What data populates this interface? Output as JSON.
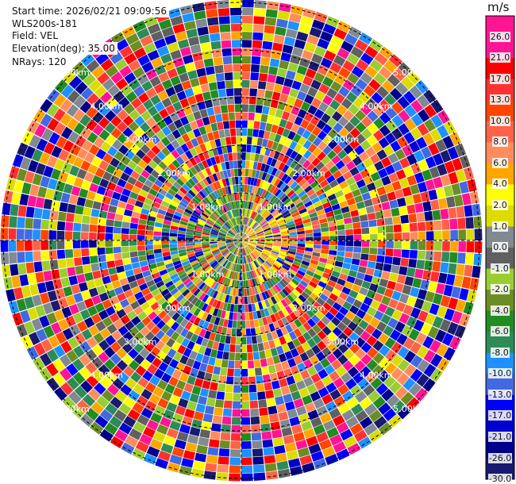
{
  "info": {
    "start_time": "Start time: 2026/02/21 09:09:56",
    "instrument": "WLS200s-181",
    "field": "Field: VEL",
    "elevation": "Elevation(deg): 35.00",
    "nrays": "NRays: 120"
  },
  "colorbar": {
    "unit": "m/s",
    "ticks": [
      "26.0",
      "21.0",
      "17.0",
      "13.0",
      "10.0",
      "8.0",
      "6.0",
      "4.0",
      "2.0",
      "1.0",
      "0.0",
      "-1.0",
      "-2.0",
      "-4.0",
      "-6.0",
      "-8.0",
      "-10.0",
      "-13.0",
      "-17.0",
      "-21.0",
      "-26.0",
      "-30.0"
    ],
    "colors": [
      "#ff1493",
      "#ff1493",
      "#ff0000",
      "#ff3030",
      "#ff4500",
      "#ff6347",
      "#ff8c5a",
      "#ffa500",
      "#ffff00",
      "#dcdc00",
      "#808a90",
      "#606060",
      "#9acd32",
      "#6b8e23",
      "#228b22",
      "#2e8b57",
      "#1e90ff",
      "#4169e1",
      "#0000ff",
      "#0000cd",
      "#00008b",
      "#191970"
    ]
  },
  "chart_data": {
    "type": "heatmap",
    "projection": "polar",
    "nrays": 120,
    "range_labels": [
      "1.00km",
      "2.00km",
      "3.00km",
      "4.00km",
      "5.00km"
    ],
    "colorbar_range": [
      -30.0,
      26.0
    ]
  }
}
